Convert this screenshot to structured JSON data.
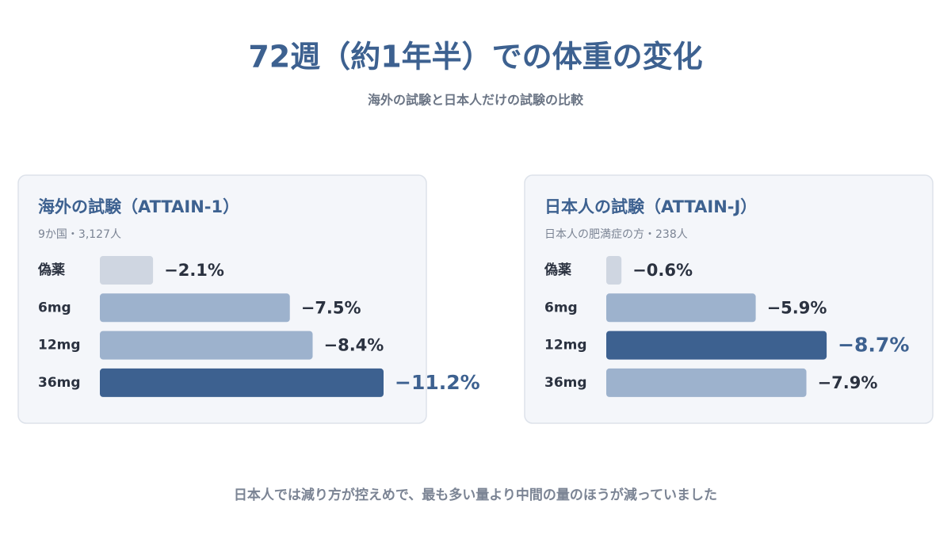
{
  "title": "72週（約1年半）での体重の変化",
  "subtitle": "海外の試験と日本人だけの試験の比較",
  "footnote": "日本人では減り方が控えめで、最も多い量より中間の量のほうが減っていました",
  "chart_data": [
    {
      "type": "bar",
      "orientation": "horizontal",
      "title": "海外の試験（ATTAIN-1）",
      "subtitle": "9か国・3,127人",
      "categories": [
        "偽薬",
        "6mg",
        "12mg",
        "36mg"
      ],
      "values": [
        -2.1,
        -7.5,
        -8.4,
        -11.2
      ],
      "value_labels": [
        "−2.1%",
        "−7.5%",
        "−8.4%",
        "−11.2%"
      ],
      "colors": [
        "#cfd6e1",
        "#9db2cd",
        "#9db2cd",
        "#3d6190"
      ]
    },
    {
      "type": "bar",
      "orientation": "horizontal",
      "title": "日本人の試験（ATTAIN-J）",
      "subtitle": "日本人の肥満症の方・238人",
      "categories": [
        "偽薬",
        "6mg",
        "12mg",
        "36mg"
      ],
      "values": [
        -0.6,
        -5.9,
        -8.7,
        -7.9
      ],
      "value_labels": [
        "−0.6%",
        "−5.9%",
        "−8.7%",
        "−7.9%"
      ],
      "colors": [
        "#cfd6e1",
        "#9db2cd",
        "#3d6190",
        "#9db2cd"
      ]
    }
  ]
}
